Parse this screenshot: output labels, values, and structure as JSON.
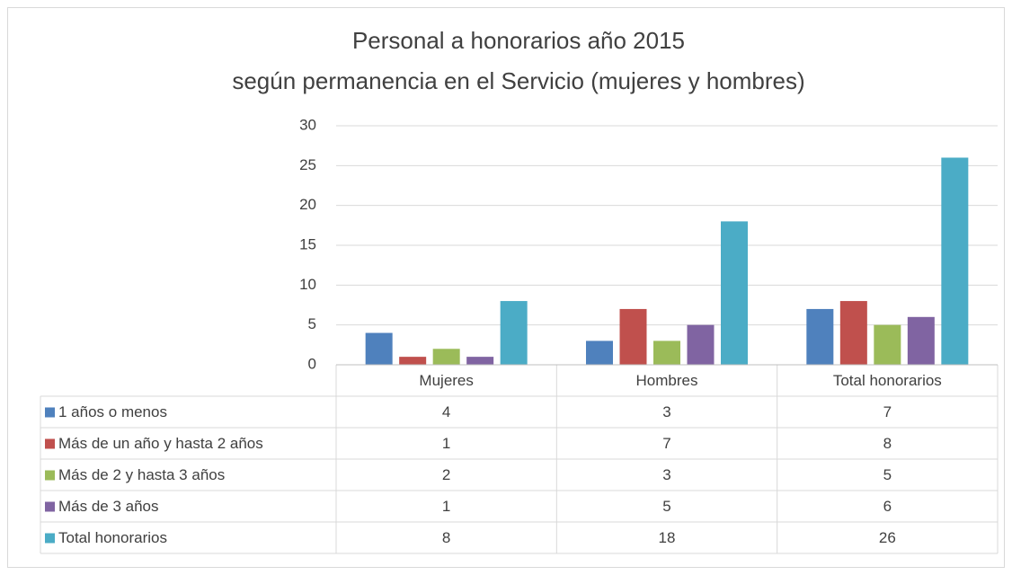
{
  "chart_data": {
    "type": "bar",
    "title": "Personal a honorarios año 2015",
    "subtitle": "según permanencia en el Servicio (mujeres y hombres)",
    "categories": [
      "Mujeres",
      "Hombres",
      "Total honorarios"
    ],
    "series": [
      {
        "name": "1 años o menos",
        "color": "#4f81bd",
        "values": [
          4,
          3,
          7
        ]
      },
      {
        "name": "Más de un año y hasta 2 años",
        "color": "#c0504d",
        "values": [
          1,
          7,
          8
        ]
      },
      {
        "name": "Más de 2 y hasta 3 años",
        "color": "#9bbb59",
        "values": [
          2,
          3,
          5
        ]
      },
      {
        "name": "Más de 3 años",
        "color": "#8064a2",
        "values": [
          1,
          5,
          6
        ]
      },
      {
        "name": "Total honorarios",
        "color": "#4bacc6",
        "values": [
          8,
          18,
          26
        ]
      }
    ],
    "ylim": [
      0,
      30
    ],
    "yticks": [
      0,
      5,
      10,
      15,
      20,
      25,
      30
    ],
    "grid": true,
    "data_table": true
  }
}
